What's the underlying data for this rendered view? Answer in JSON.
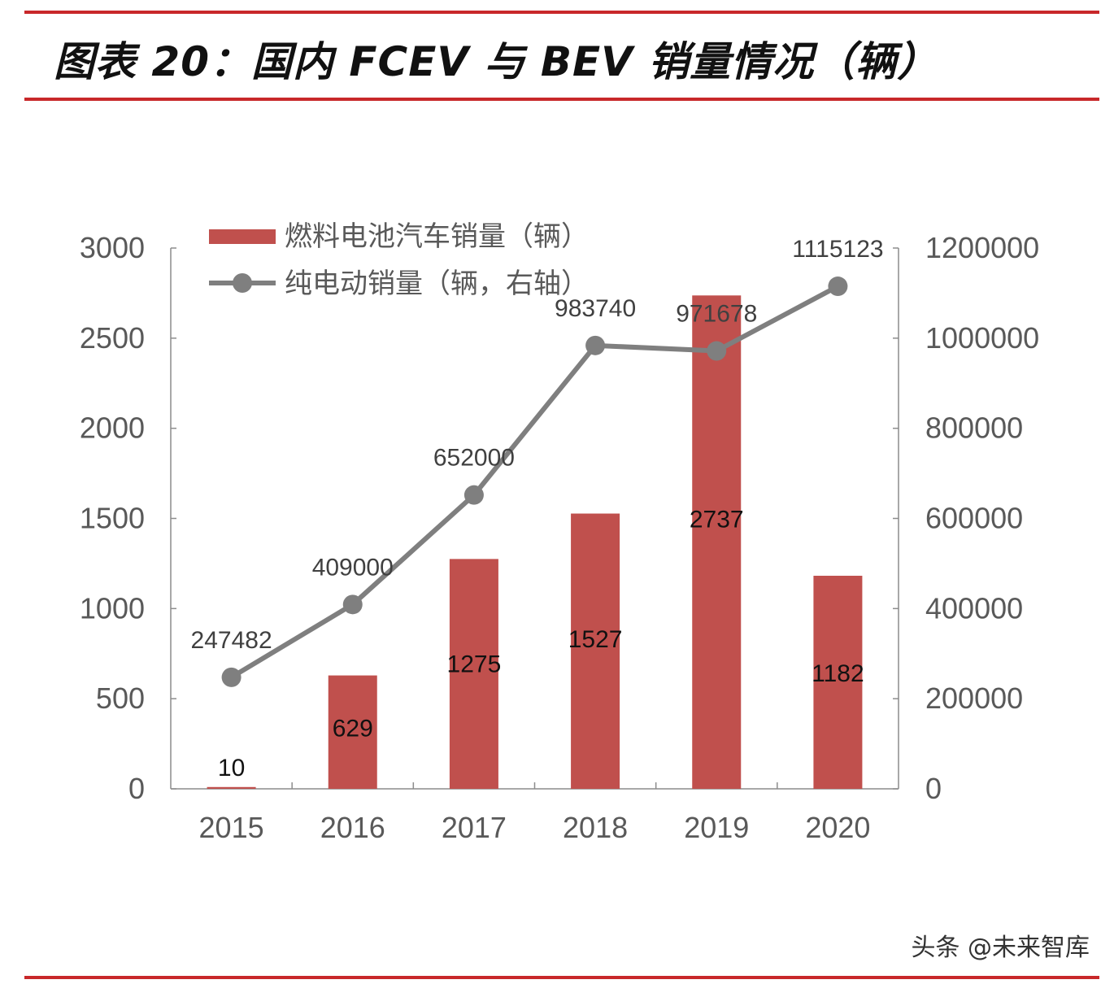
{
  "header": {
    "title": "图表 20：国内 FCEV 与 BEV 销量情况（辆）"
  },
  "watermark": "头条 @未来智库",
  "colors": {
    "rule": "#c8282a",
    "bar": "#c0504d",
    "line": "#7f7f7f",
    "axis": "#8c8c8c",
    "tick_text": "#595959"
  },
  "chart_data": {
    "type": "bar+line",
    "categories": [
      "2015",
      "2016",
      "2017",
      "2018",
      "2019",
      "2020"
    ],
    "series": [
      {
        "name": "燃料电池汽车销量（辆）",
        "type": "bar",
        "axis": "left",
        "values": [
          10,
          629,
          1275,
          1527,
          2737,
          1182
        ],
        "labels": [
          "10",
          "629",
          "1275",
          "1527",
          "2737",
          "1182"
        ]
      },
      {
        "name": "纯电动销量（辆，右轴）",
        "type": "line",
        "axis": "right",
        "values": [
          247482,
          409000,
          652000,
          983740,
          971678,
          1115123
        ],
        "labels": [
          "247482",
          "409000",
          "652000",
          "983740",
          "971678",
          "1115123"
        ]
      }
    ],
    "y_left": {
      "range": [
        0,
        3000
      ],
      "ticks": [
        "0",
        "500",
        "1000",
        "1500",
        "2000",
        "2500",
        "3000"
      ]
    },
    "y_right": {
      "range": [
        0,
        1200000
      ],
      "ticks": [
        "0",
        "200000",
        "400000",
        "600000",
        "800000",
        "1000000",
        "1200000"
      ]
    },
    "grid": false,
    "legend_position": "top-left"
  }
}
